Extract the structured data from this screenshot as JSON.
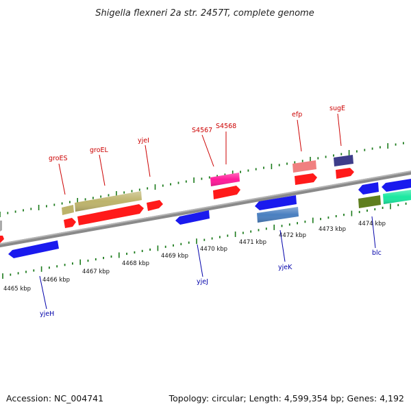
{
  "title": "Shigella flexneri 2a str. 2457T, complete genome",
  "footer": {
    "accession": "Accession: NC_004741",
    "summary": "Topology: circular; Length: 4,599,354 bp; Genes: 4,192"
  },
  "colors": {
    "label_forward": "#cc0000",
    "label_reverse": "#0000aa",
    "tick": "#1a7a1a",
    "backbone": "#808080"
  },
  "scale_labels": [
    "4465 kbp",
    "4466 kbp",
    "4467 kbp",
    "4468 kbp",
    "4469 kbp",
    "4470 kbp",
    "4471 kbp",
    "4472 kbp",
    "4473 kbp",
    "4474 kbp"
  ],
  "genes_forward": [
    {
      "label": "groES",
      "color": "#ff1a1a"
    },
    {
      "label": "groEL",
      "color": "#ff1a1a"
    },
    {
      "label": "yjeI",
      "color": "#ff1a1a"
    },
    {
      "label": "S4567",
      "color": "#ff1a1a"
    },
    {
      "label": "S4568",
      "color": "#ff1a1a"
    },
    {
      "label": "efp",
      "color": "#ff1a1a"
    },
    {
      "label": "sugE",
      "color": "#ff1a1a"
    }
  ],
  "genes_reverse": [
    {
      "label": "yjeH",
      "color": "#1a1aee"
    },
    {
      "label": "yjeJ",
      "color": "#1a1aee"
    },
    {
      "label": "yjeK",
      "color": "#1a1aee"
    },
    {
      "label": "blc",
      "color": "#1a1aee"
    }
  ]
}
